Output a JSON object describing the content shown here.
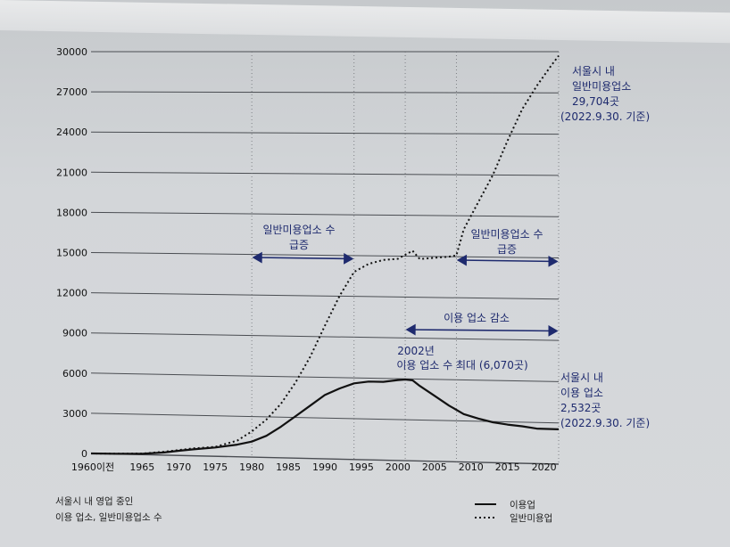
{
  "chart_data": {
    "type": "line",
    "ylim": [
      0,
      30000
    ],
    "y_ticks": [
      "0",
      "3000",
      "6000",
      "9000",
      "12000",
      "15000",
      "18000",
      "21000",
      "24000",
      "27000",
      "30000"
    ],
    "x_ticks": [
      {
        "label": "1960이전",
        "year": 1958
      },
      {
        "label": "1965",
        "year": 1965
      },
      {
        "label": "1970",
        "year": 1970
      },
      {
        "label": "1975",
        "year": 1975
      },
      {
        "label": "1980",
        "year": 1980
      },
      {
        "label": "1985",
        "year": 1985
      },
      {
        "label": "1990",
        "year": 1990
      },
      {
        "label": "1995",
        "year": 1995
      },
      {
        "label": "2000",
        "year": 2000
      },
      {
        "label": "2005",
        "year": 2005
      },
      {
        "label": "2010",
        "year": 2010
      },
      {
        "label": "2015",
        "year": 2015
      },
      {
        "label": "2020",
        "year": 2020
      }
    ],
    "grid": "horizontal lines; dotted vertical lines at 1980, 1994, 2001, 2008, 2022",
    "series": [
      {
        "name": "이용업",
        "style": "solid",
        "points": [
          [
            1958,
            0
          ],
          [
            1962,
            20
          ],
          [
            1965,
            60
          ],
          [
            1968,
            200
          ],
          [
            1970,
            350
          ],
          [
            1972,
            480
          ],
          [
            1975,
            650
          ],
          [
            1978,
            900
          ],
          [
            1980,
            1150
          ],
          [
            1982,
            1600
          ],
          [
            1984,
            2300
          ],
          [
            1986,
            3100
          ],
          [
            1988,
            3900
          ],
          [
            1990,
            4700
          ],
          [
            1992,
            5200
          ],
          [
            1994,
            5600
          ],
          [
            1996,
            5750
          ],
          [
            1998,
            5750
          ],
          [
            2000,
            5900
          ],
          [
            2001,
            5950
          ],
          [
            2002,
            5900
          ],
          [
            2003,
            5500
          ],
          [
            2005,
            4800
          ],
          [
            2007,
            4100
          ],
          [
            2009,
            3500
          ],
          [
            2011,
            3200
          ],
          [
            2013,
            2950
          ],
          [
            2015,
            2800
          ],
          [
            2017,
            2700
          ],
          [
            2019,
            2550
          ],
          [
            2022,
            2532
          ]
        ]
      },
      {
        "name": "일반미용업",
        "style": "dotted",
        "points": [
          [
            1958,
            0
          ],
          [
            1962,
            30
          ],
          [
            1965,
            80
          ],
          [
            1968,
            250
          ],
          [
            1970,
            400
          ],
          [
            1972,
            550
          ],
          [
            1975,
            700
          ],
          [
            1978,
            1200
          ],
          [
            1980,
            1900
          ],
          [
            1982,
            2800
          ],
          [
            1984,
            4000
          ],
          [
            1986,
            5600
          ],
          [
            1988,
            7500
          ],
          [
            1990,
            9800
          ],
          [
            1992,
            12000
          ],
          [
            1994,
            13800
          ],
          [
            1996,
            14400
          ],
          [
            1998,
            14700
          ],
          [
            2000,
            14800
          ],
          [
            2001,
            15100
          ],
          [
            2002,
            15400
          ],
          [
            2003,
            14800
          ],
          [
            2005,
            14900
          ],
          [
            2007,
            15000
          ],
          [
            2008,
            15100
          ],
          [
            2009,
            17000
          ],
          [
            2011,
            19000
          ],
          [
            2013,
            21000
          ],
          [
            2015,
            23500
          ],
          [
            2017,
            25800
          ],
          [
            2019,
            27500
          ],
          [
            2021,
            29000
          ],
          [
            2022,
            29704
          ]
        ]
      }
    ],
    "annotations": {
      "surge1": {
        "label_line1": "일반미용업소 수",
        "label_line2": "급증",
        "from": 1980,
        "to": 1994
      },
      "surge2": {
        "label_line1": "일반미용업소 수",
        "label_line2": "급증",
        "from": 2008,
        "to": 2022
      },
      "decline": {
        "label": "이용 업소 감소",
        "from": 2001,
        "to": 2022
      },
      "peak": {
        "line1": "2002년",
        "line2": "이용 업소 수 최대 (6,070곳)"
      },
      "dotted_end": {
        "line1": "서울시 내",
        "line2": "일반미용업소",
        "line3": "29,704곳",
        "line4": "(2022.9.30. 기준)"
      },
      "solid_end": {
        "line1": "서울시 내",
        "line2": "이용 업소",
        "line3": "2,532곳",
        "line4": "(2022.9.30. 기준)"
      }
    },
    "footnote": {
      "line1": "서울시 내 영업 중인",
      "line2": "이용 업소, 일반미용업소 수"
    },
    "legend": {
      "position": "bottom-right",
      "items": [
        {
          "label": "이용업",
          "style": "solid"
        },
        {
          "label": "일반미용업",
          "style": "dotted"
        }
      ]
    },
    "colors": {
      "line": "#111111",
      "annotation": "#1e2a6e",
      "grid": "#555555",
      "background": "#d3d6d9"
    }
  }
}
